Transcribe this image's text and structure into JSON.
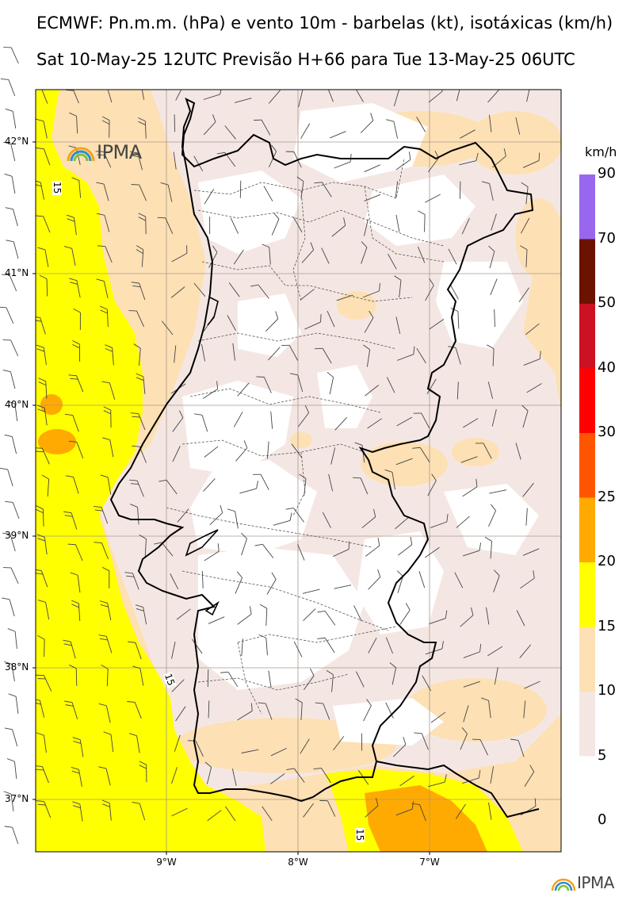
{
  "header": {
    "line1": "ECMWF: Pn.m.m. (hPa) e vento 10m - barbelas (kt), isotáxicas (km/h)",
    "line2": "Sat 10-May-25 12UTC Previsão H+66 para Tue 13-May-25 06UTC"
  },
  "map": {
    "lat_labels": [
      "42°N",
      "41°N",
      "40°N",
      "39°N",
      "38°N",
      "37°N"
    ],
    "lon_labels": [
      "9°W",
      "8°W",
      "7°W"
    ],
    "contour_labels": [
      "15",
      "15",
      "15"
    ],
    "colors": {
      "land_light": "#f4e7e3",
      "pale_orange": "#fde0b4",
      "yellow": "#ffff00",
      "orange": "#ffaa00",
      "coast": "#000000"
    }
  },
  "colorbar": {
    "unit": "km/h",
    "labels": [
      "90",
      "70",
      "50",
      "40",
      "30",
      "25",
      "20",
      "15",
      "10",
      "5",
      "0"
    ],
    "colors": [
      "#9966ee",
      "#6b1200",
      "#cc1122",
      "#ff0000",
      "#ff5500",
      "#ffaa00",
      "#ffff00",
      "#fde0b4",
      "#f4e7e3",
      "#ffffff"
    ]
  },
  "logo": {
    "text": "IPMA",
    "icon": "rainbow-arc-icon"
  }
}
